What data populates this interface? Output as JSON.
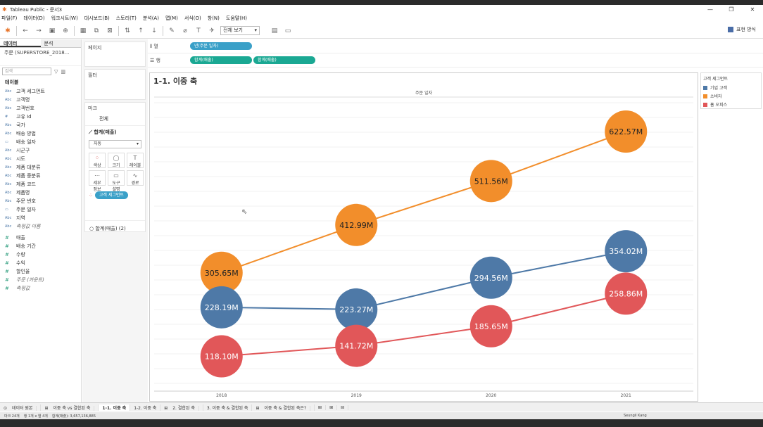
{
  "window": {
    "title": "Tableau Public - 문서3",
    "minimize": "—",
    "maximize": "❐",
    "close": "✕"
  },
  "menu": [
    "파일(F)",
    "데이터(D)",
    "워크시트(W)",
    "대시보드(B)",
    "스토리(T)",
    "분석(A)",
    "맵(M)",
    "서식(O)",
    "창(N)",
    "도움말(H)"
  ],
  "toolbar": {
    "fit_label": "전체 보기",
    "show_me": "표현 방식"
  },
  "datapane": {
    "tab_data": "데이터",
    "tab_analysis": "분석",
    "datasource": "주문 (SUPERSTORE_2018...",
    "search_placeholder": "검색",
    "tables_title": "테이블",
    "fields": [
      {
        "type": "Abc",
        "name": "고객 세그먼트"
      },
      {
        "type": "Abc",
        "name": "고객명"
      },
      {
        "type": "Abc",
        "name": "고객번호"
      },
      {
        "type": "#",
        "name": "고유 Id"
      },
      {
        "type": "Abc",
        "name": "국가"
      },
      {
        "type": "Abc",
        "name": "배송 방법"
      },
      {
        "type": "▭",
        "name": "배송 일자"
      },
      {
        "type": "Abc",
        "name": "시군구"
      },
      {
        "type": "Abc",
        "name": "시도"
      },
      {
        "type": "Abc",
        "name": "제품 대분류"
      },
      {
        "type": "Abc",
        "name": "제품 중분류"
      },
      {
        "type": "Abc",
        "name": "제품 코드"
      },
      {
        "type": "Abc",
        "name": "제품명"
      },
      {
        "type": "Abc",
        "name": "주문 번호"
      },
      {
        "type": "▭",
        "name": "주문 일자"
      },
      {
        "type": "Abc",
        "name": "지역"
      },
      {
        "type": "Abc",
        "name": "측정값 이름",
        "italic": true
      }
    ],
    "measures": [
      {
        "name": "매출"
      },
      {
        "name": "배송 기간"
      },
      {
        "name": "수량"
      },
      {
        "name": "수익"
      },
      {
        "name": "할인율"
      },
      {
        "name": "주문 (카운트)",
        "italic": true
      },
      {
        "name": "측정값",
        "italic": true
      }
    ]
  },
  "cards": {
    "pages": "페이지",
    "filters": "필터",
    "marks": "마크",
    "marks_all": "전체",
    "marks_measure": "합계(매출)",
    "marktype": "자동",
    "buttons": [
      {
        "icon": "●",
        "label": "색상"
      },
      {
        "icon": "◯",
        "label": "크기"
      },
      {
        "icon": "T",
        "label": "레이블"
      },
      {
        "icon": "⋯",
        "label": "세부\n정보"
      },
      {
        "icon": "▭",
        "label": "도구\n설명"
      },
      {
        "icon": "∿",
        "label": "경로"
      }
    ],
    "color_pill": "고객 세그먼트",
    "second_measure": "합계(매출) (2)"
  },
  "shelves": {
    "columns_label": "열",
    "rows_label": "행",
    "columns_pill": "년(주문 일자)",
    "rows_pill1": "합계(매출)",
    "rows_pill2": "합계(매출)"
  },
  "viz": {
    "title": "1-1. 이중 축",
    "header": "주문 일자"
  },
  "legend": {
    "title": "고객 세그먼트",
    "items": [
      {
        "name": "기업 고객",
        "color": "#4e79a7"
      },
      {
        "name": "소비자",
        "color": "#f28e2b"
      },
      {
        "name": "홈 오피스",
        "color": "#e15759"
      }
    ]
  },
  "chart_data": {
    "type": "line",
    "x": [
      "2018",
      "2019",
      "2020",
      "2021"
    ],
    "series": [
      {
        "name": "소비자",
        "color": "#f28e2b",
        "values": [
          305.65,
          412.99,
          511.56,
          622.57
        ],
        "labels": [
          "305.65M",
          "412.99M",
          "511.56M",
          "622.57M"
        ]
      },
      {
        "name": "기업 고객",
        "color": "#4e79a7",
        "values": [
          228.19,
          223.27,
          294.56,
          354.02
        ],
        "labels": [
          "228.19M",
          "223.27M",
          "294.56M",
          "354.02M"
        ]
      },
      {
        "name": "홈 오피스",
        "color": "#e15759",
        "values": [
          118.1,
          141.72,
          185.65,
          258.86
        ],
        "labels": [
          "118.10M",
          "141.72M",
          "185.65M",
          "258.86M"
        ]
      }
    ],
    "ylim": [
      40,
      700
    ],
    "grid": true
  },
  "bottomtabs": [
    {
      "label": "데이터 원본",
      "active": false
    },
    {
      "label": "이중 축 vs 결합된 축",
      "active": false
    },
    {
      "label": "1-1. 이중 축",
      "active": true
    },
    {
      "label": "1-2. 이중 축",
      "active": false
    },
    {
      "label": "2. 결합된 축",
      "active": false
    },
    {
      "label": "3. 이중 축 & 결합된 축",
      "active": false
    },
    {
      "label": "이중 축 & 결합된 축은?",
      "active": false
    }
  ],
  "status": {
    "marks": "마크 24개",
    "rows": "행 1개 x 열 4개",
    "sum": "합계(매출): 3,657,136,885",
    "user": "Seungil Kang"
  }
}
